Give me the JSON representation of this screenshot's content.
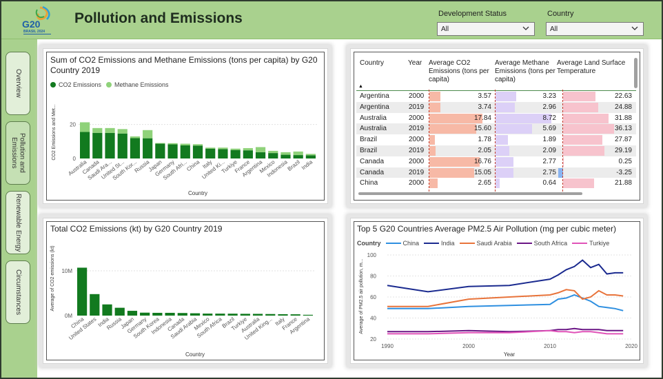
{
  "header": {
    "title": "Pollution and Emissions",
    "logo_text": "G20",
    "logo_subtext": "BRASIL 2024"
  },
  "filters": [
    {
      "label": "Development Status",
      "value": "All"
    },
    {
      "label": "Country",
      "value": "All"
    }
  ],
  "nav": [
    {
      "label": "Overview",
      "active": false
    },
    {
      "label": "Pollution and Emissions",
      "active": true
    },
    {
      "label": "Renewable Energy",
      "active": false
    },
    {
      "label": "Circumstances",
      "active": false
    }
  ],
  "colors": {
    "accent": "#a9d18e",
    "co2": "#127a1f",
    "methane": "#8fd27a",
    "china": "#2e8fe0",
    "india": "#1a2a8f",
    "saudi": "#e8733a",
    "southafrica": "#6a1585",
    "turkiye": "#e052b8"
  },
  "chart_data": [
    {
      "type": "bar",
      "title": "Sum of CO2 Emissions and Methane Emissions (tons per capita) by G20 Country 2019",
      "xlabel": "Country",
      "ylabel": "CO2 Emissions and Met...",
      "legend": [
        "CO2 Emissions",
        "Methane Emissions"
      ],
      "categories": [
        "Australia",
        "Canada",
        "Saudi Ara...",
        "United St...",
        "South Kor...",
        "Russia",
        "Japan",
        "Germany",
        "South Afri...",
        "China",
        "Italy",
        "United Ki...",
        "Turkiye",
        "France",
        "Argentina",
        "Mexico",
        "Indonesia",
        "Brazil",
        "India"
      ],
      "yticks": [
        "20",
        "0"
      ],
      "ylim": [
        0,
        30
      ],
      "series": [
        {
          "name": "CO2 Emissions",
          "values": [
            15.6,
            15.1,
            15.0,
            14.7,
            12.0,
            11.9,
            8.7,
            8.3,
            7.7,
            7.6,
            5.8,
            5.5,
            5.0,
            4.8,
            3.7,
            3.2,
            2.2,
            2.0,
            1.9
          ]
        },
        {
          "name": "Methane Emissions",
          "values": [
            5.7,
            2.8,
            2.9,
            2.6,
            1.0,
            4.8,
            0.4,
            0.7,
            1.0,
            0.8,
            0.6,
            0.9,
            0.8,
            1.3,
            3.0,
            1.3,
            1.5,
            2.1,
            0.8
          ]
        }
      ]
    },
    {
      "type": "bar",
      "title": "Total CO2 Emissions (kt) by G20 Country 2019",
      "xlabel": "Country",
      "ylabel": "Average of CO2 emissions (kt)",
      "categories": [
        "China",
        "United States",
        "India",
        "Russia",
        "Japan",
        "Germany",
        "South Korea",
        "Indonesia",
        "Canada",
        "Saudi Arabia",
        "Mexico",
        "South Africa",
        "Brazil",
        "Turkiye",
        "Australia",
        "United King...",
        "Italy",
        "France",
        "Argentina"
      ],
      "yticks": [
        "10M",
        "0M"
      ],
      "ylim": [
        0,
        12000000
      ],
      "values": [
        10700000,
        4800000,
        2500000,
        1750000,
        1070000,
        660000,
        620000,
        620000,
        580000,
        520000,
        450000,
        440000,
        430000,
        400000,
        390000,
        350000,
        310000,
        290000,
        180000
      ]
    },
    {
      "type": "line",
      "title": "Top 5 G20 Countries Average PM2.5 Air Pollution (mg per cubic meter)",
      "xlabel": "Year",
      "ylabel": "Average of PM2.5 air pollution, m...",
      "legend_title": "Country",
      "xlim": [
        1990,
        2020
      ],
      "ylim": [
        20,
        100
      ],
      "xticks": [
        "1990",
        "2000",
        "2010",
        "2020"
      ],
      "yticks": [
        "100",
        "80",
        "60",
        "40",
        "20"
      ],
      "series": [
        {
          "name": "China",
          "x": [
            1990,
            1995,
            2000,
            2005,
            2010,
            2011,
            2012,
            2013,
            2014,
            2015,
            2016,
            2017,
            2018,
            2019
          ],
          "y": [
            49,
            49,
            51,
            52,
            53,
            58,
            59,
            62,
            59,
            56,
            51,
            50,
            49,
            47
          ]
        },
        {
          "name": "India",
          "x": [
            1990,
            1995,
            2000,
            2005,
            2010,
            2011,
            2012,
            2013,
            2014,
            2015,
            2016,
            2017,
            2018,
            2019
          ],
          "y": [
            71,
            65,
            70,
            71,
            77,
            81,
            86,
            89,
            95,
            88,
            91,
            82,
            83,
            83
          ]
        },
        {
          "name": "Saudi Arabia",
          "x": [
            1990,
            1995,
            2000,
            2005,
            2010,
            2011,
            2012,
            2013,
            2014,
            2015,
            2016,
            2017,
            2018,
            2019
          ],
          "y": [
            51,
            51,
            58,
            60,
            62,
            64,
            67,
            66,
            58,
            60,
            66,
            62,
            62,
            61
          ]
        },
        {
          "name": "South Africa",
          "x": [
            1990,
            1995,
            2000,
            2005,
            2010,
            2011,
            2012,
            2013,
            2014,
            2015,
            2016,
            2017,
            2018,
            2019
          ],
          "y": [
            27,
            27,
            28,
            27,
            28,
            29,
            29,
            30,
            29,
            29,
            29,
            28,
            28,
            28
          ]
        },
        {
          "name": "Turkiye",
          "x": [
            1990,
            1995,
            2000,
            2005,
            2010,
            2011,
            2012,
            2013,
            2014,
            2015,
            2016,
            2017,
            2018,
            2019
          ],
          "y": [
            25,
            25,
            26,
            26,
            28,
            27,
            27,
            26,
            27,
            27,
            26,
            25,
            25,
            25
          ]
        }
      ]
    },
    {
      "type": "table",
      "columns": [
        "Country",
        "Year",
        "Average CO2 Emissions (tons per capita)",
        "Average Methane Emissions (tons per capita)",
        "Average Land Surface Temperature"
      ],
      "rows": [
        [
          "Argentina",
          "2000",
          "3.57",
          "3.23",
          "22.63"
        ],
        [
          "Argentina",
          "2019",
          "3.74",
          "2.96",
          "24.88"
        ],
        [
          "Australia",
          "2000",
          "17.84",
          "8.72",
          "31.88"
        ],
        [
          "Australia",
          "2019",
          "15.60",
          "5.69",
          "36.13"
        ],
        [
          "Brazil",
          "2000",
          "1.78",
          "1.89",
          "27.87"
        ],
        [
          "Brazil",
          "2019",
          "2.05",
          "2.09",
          "29.19"
        ],
        [
          "Canada",
          "2000",
          "16.76",
          "2.77",
          "0.25"
        ],
        [
          "Canada",
          "2019",
          "15.05",
          "2.75",
          "-3.25"
        ],
        [
          "China",
          "2000",
          "2.65",
          "0.64",
          "21.88"
        ]
      ]
    }
  ]
}
